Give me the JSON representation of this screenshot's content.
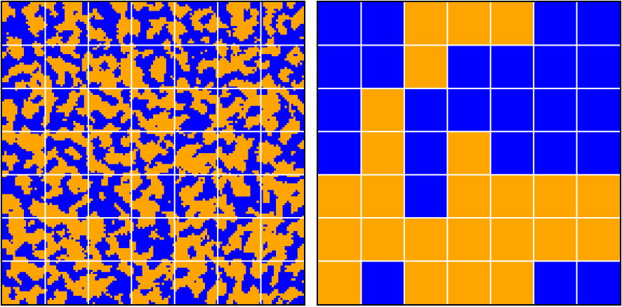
{
  "grid": {
    "rows": [
      [
        0,
        0,
        1,
        1,
        1,
        0,
        0
      ],
      [
        0,
        0,
        1,
        0,
        0,
        0,
        0
      ],
      [
        0,
        1,
        0,
        0,
        0,
        0,
        0
      ],
      [
        0,
        1,
        0,
        1,
        0,
        0,
        0
      ],
      [
        1,
        1,
        0,
        1,
        1,
        1,
        1
      ],
      [
        1,
        1,
        1,
        1,
        1,
        1,
        1
      ],
      [
        1,
        0,
        1,
        1,
        1,
        0,
        0
      ]
    ],
    "colors": [
      "#0000ff",
      "#ffa500"
    ]
  }
}
